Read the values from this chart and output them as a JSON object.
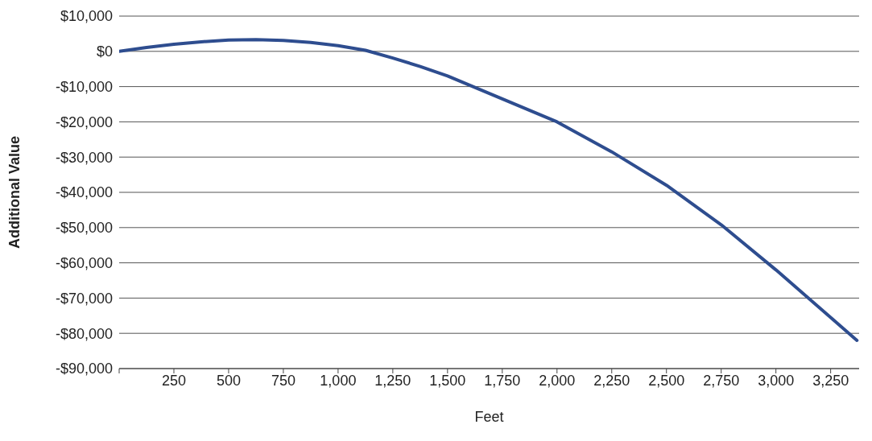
{
  "chart_data": {
    "type": "line",
    "xlabel": "Feet",
    "ylabel": "Additional Value",
    "x": [
      0,
      125,
      250,
      375,
      500,
      625,
      750,
      875,
      1000,
      1125,
      1250,
      1375,
      1500,
      1750,
      2000,
      2250,
      2500,
      2750,
      3000,
      3250,
      3370
    ],
    "series": [
      {
        "color": "#2e4d8f",
        "values": [
          0,
          1100,
          2000,
          2700,
          3200,
          3300,
          3100,
          2500,
          1600,
          300,
          -1900,
          -4300,
          -7000,
          -13500,
          -20000,
          -28500,
          -38000,
          -49200,
          -62000,
          -75500,
          -82000
        ]
      }
    ],
    "xlim": [
      0,
      3380
    ],
    "xticks": [
      {
        "value": 0,
        "label": null
      },
      {
        "value": 250,
        "label": "250"
      },
      {
        "value": 500,
        "label": "500"
      },
      {
        "value": 750,
        "label": "750"
      },
      {
        "value": 1000,
        "label": "1,000"
      },
      {
        "value": 1250,
        "label": "1,250"
      },
      {
        "value": 1500,
        "label": "1,500"
      },
      {
        "value": 1750,
        "label": "1,750"
      },
      {
        "value": 2000,
        "label": "2,000"
      },
      {
        "value": 2250,
        "label": "2,250"
      },
      {
        "value": 2500,
        "label": "2,500"
      },
      {
        "value": 2750,
        "label": "2,750"
      },
      {
        "value": 3000,
        "label": "3,000"
      },
      {
        "value": 3250,
        "label": "3,250"
      }
    ],
    "ylim": [
      -90000,
      10000
    ],
    "yticks": [
      {
        "value": 10000,
        "label": "$10,000"
      },
      {
        "value": 0,
        "label": "$0"
      },
      {
        "value": -10000,
        "label": "-$10,000"
      },
      {
        "value": -20000,
        "label": "-$20,000"
      },
      {
        "value": -30000,
        "label": "-$30,000"
      },
      {
        "value": -40000,
        "label": "-$40,000"
      },
      {
        "value": -50000,
        "label": "-$50,000"
      },
      {
        "value": -60000,
        "label": "-$60,000"
      },
      {
        "value": -70000,
        "label": "-$70,000"
      },
      {
        "value": -80000,
        "label": "-$80,000"
      },
      {
        "value": -90000,
        "label": "-$90,000"
      }
    ],
    "grid": "y",
    "marker": "none",
    "line_style": "solid"
  }
}
